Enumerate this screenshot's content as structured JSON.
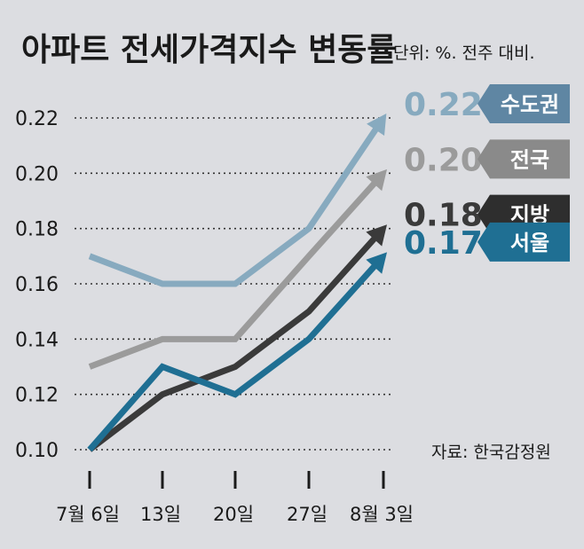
{
  "chart_data": {
    "type": "line",
    "title": "아파트 전세가격지수 변동률",
    "unit_note": "단위: %. 전주 대비.",
    "source": "자료: 한국감정원",
    "x": [
      "7월 6일",
      "13일",
      "20일",
      "27일",
      "8월 3일"
    ],
    "yticks": [
      "0.10",
      "0.12",
      "0.14",
      "0.16",
      "0.18",
      "0.20",
      "0.22"
    ],
    "ylim": [
      0.1,
      0.22
    ],
    "grid": "horizontal dotted",
    "series": [
      {
        "name": "수도권",
        "values": [
          0.17,
          0.16,
          0.16,
          0.18,
          0.22
        ],
        "end_label": "0.22",
        "color": "#87aabf",
        "badge_color": "#5f86a3"
      },
      {
        "name": "전국",
        "values": [
          0.13,
          0.14,
          0.14,
          0.17,
          0.2
        ],
        "end_label": "0.20",
        "color": "#9b9b9b",
        "badge_color": "#8a8a8a"
      },
      {
        "name": "지방",
        "values": [
          0.1,
          0.12,
          0.13,
          0.15,
          0.18
        ],
        "end_label": "0.18",
        "color": "#3a3a3a",
        "badge_color": "#2e2e2e"
      },
      {
        "name": "서울",
        "values": [
          0.1,
          0.13,
          0.12,
          0.14,
          0.17
        ],
        "end_label": "0.17",
        "color": "#1f6f93",
        "badge_color": "#1f6f93"
      }
    ]
  }
}
